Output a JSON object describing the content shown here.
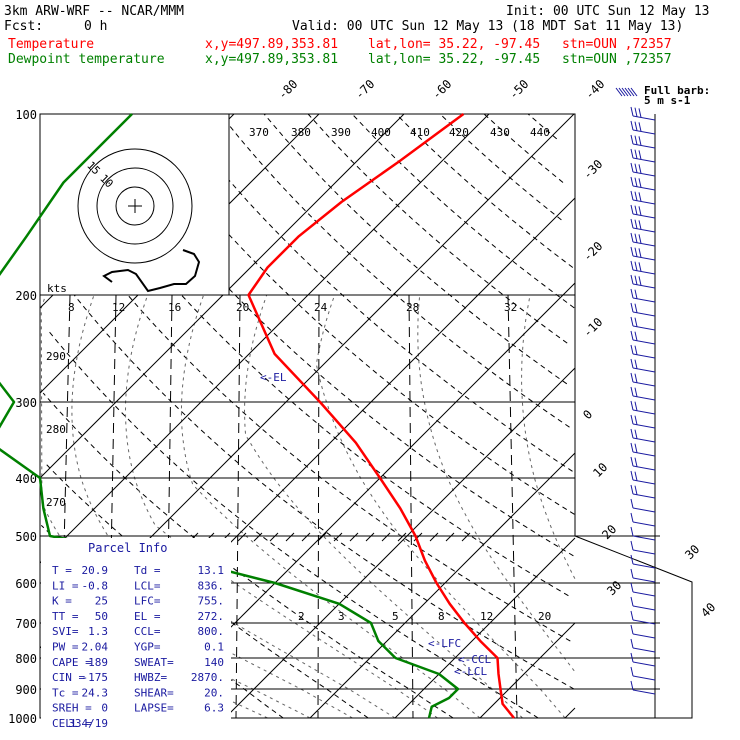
{
  "header": {
    "model": "3km ARW-WRF -- NCAR/MMM",
    "init": "Init: 00 UTC Sun 12 May 13",
    "fcst_label": "Fcst:",
    "fcst_value": "0 h",
    "valid": "Valid: 00 UTC Sun 12 May 13 (18 MDT Sat 11 May 13)",
    "line_temp": {
      "name": "Temperature",
      "xy": "x,y=497.89,353.81",
      "latlon": "lat,lon= 35.22, -97.45",
      "stn": "stn=OUN ,72357",
      "color": "#ff0000"
    },
    "line_dew": {
      "name": "Dewpoint temperature",
      "xy": "x,y=497.89,353.81",
      "latlon": "lat,lon= 35.22, -97.45",
      "stn": "stn=OUN ,72357",
      "color": "#008000"
    }
  },
  "barb_key": {
    "title": "Full barb:",
    "value": "5 m s-1"
  },
  "hodograph": {
    "units": "kts",
    "ring_labels": [
      "15",
      "10"
    ]
  },
  "parcel_info": {
    "title": "Parcel Info",
    "rows": [
      [
        "T  =",
        "20.9",
        "Td =",
        "13.1"
      ],
      [
        "LI =",
        "-0.8",
        "LCL=",
        "836."
      ],
      [
        "K  =",
        "25",
        "LFC=",
        "755."
      ],
      [
        "TT =",
        "50",
        "EL =",
        "272."
      ],
      [
        "SVI=",
        "1.3",
        "CCL=",
        "800."
      ],
      [
        "PW =",
        "2.04",
        "YGP=",
        "0.1"
      ],
      [
        "CAPE =",
        "189",
        "SWEAT=",
        "140"
      ],
      [
        "CIN =",
        "-175",
        "HWBZ=",
        "2870."
      ],
      [
        "Tc =",
        "24.3",
        "SHEAR=",
        "20."
      ],
      [
        "SREH =",
        "0",
        "LAPSE=",
        "6.3"
      ],
      [
        "CELL =",
        "334/19",
        "",
        ""
      ]
    ]
  },
  "levels": {
    "el": "<-EL",
    "lfc": "<-LFC",
    "ccl": "<-CCL",
    "lcl": "<-LCL"
  },
  "colors": {
    "temperature": "#ff0000",
    "dewpoint": "#008000",
    "barbs": "#1a1aa0",
    "parcel": "#1a1aa0"
  },
  "chart_data": {
    "type": "line",
    "title": "",
    "xlabel": "",
    "ylabel": "",
    "pressure_levels": [
      100,
      200,
      300,
      400,
      500,
      600,
      700,
      800,
      900,
      1000
    ],
    "isotherm_labels": [
      "-80",
      "-70",
      "-60",
      "-50",
      "-40",
      "-30",
      "-20",
      "-10",
      "0",
      "10",
      "20",
      "30",
      "40"
    ],
    "theta_labels": [
      "370",
      "380",
      "390",
      "400",
      "410",
      "420",
      "430",
      "440"
    ],
    "theta_side_labels": [
      "290",
      "280",
      "270"
    ],
    "mixing_ratio_labels": [
      "8",
      "12",
      "16",
      "20",
      "24",
      "28",
      "32"
    ],
    "mixing_ratio_low_labels": [
      "2",
      "3",
      "5",
      "8",
      "12",
      "20"
    ],
    "series": [
      {
        "name": "Temperature",
        "points": [
          [
            1000,
            24
          ],
          [
            950,
            21
          ],
          [
            900,
            19
          ],
          [
            850,
            17
          ],
          [
            800,
            15
          ],
          [
            750,
            11
          ],
          [
            700,
            7
          ],
          [
            650,
            3
          ],
          [
            600,
            -1
          ],
          [
            550,
            -5
          ],
          [
            500,
            -9
          ],
          [
            450,
            -14
          ],
          [
            400,
            -20
          ],
          [
            350,
            -27
          ],
          [
            300,
            -36
          ],
          [
            250,
            -47
          ],
          [
            200,
            -57
          ],
          [
            180,
            -58
          ],
          [
            160,
            -58
          ],
          [
            140,
            -57
          ],
          [
            120,
            -55
          ],
          [
            100,
            -53
          ]
        ]
      },
      {
        "name": "Dewpoint temperature",
        "points": [
          [
            1000,
            14
          ],
          [
            960,
            13
          ],
          [
            930,
            14
          ],
          [
            900,
            14
          ],
          [
            850,
            10
          ],
          [
            800,
            3
          ],
          [
            750,
            -1
          ],
          [
            700,
            -4
          ],
          [
            650,
            -10
          ],
          [
            600,
            -20
          ],
          [
            550,
            -33
          ],
          [
            500,
            -52
          ],
          [
            450,
            -56
          ],
          [
            400,
            -60
          ],
          [
            350,
            -70
          ],
          [
            300,
            -72
          ],
          [
            250,
            -82
          ],
          [
            200,
            -88
          ],
          [
            160,
            -90
          ],
          [
            130,
            -92
          ],
          [
            100,
            -92
          ]
        ]
      }
    ]
  }
}
